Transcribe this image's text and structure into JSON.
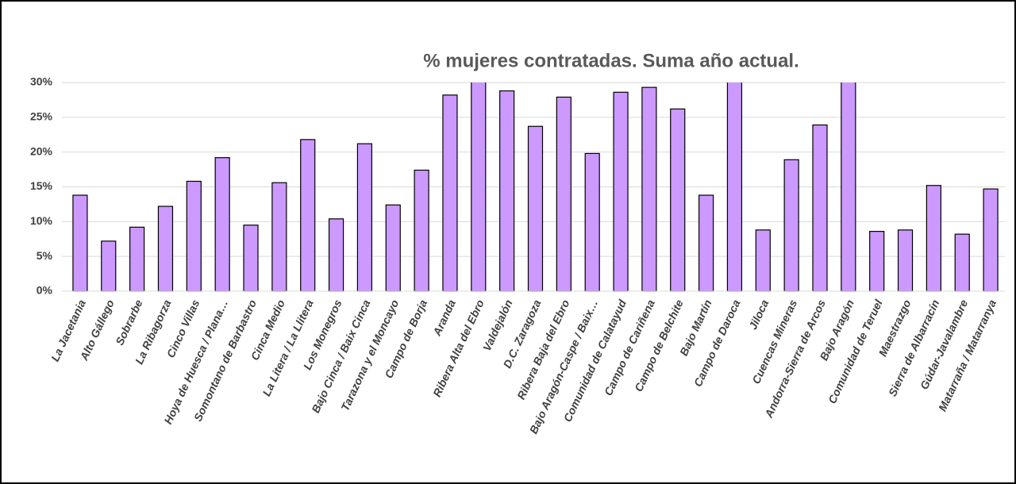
{
  "chart_data": {
    "type": "bar",
    "title": "% mujeres contratadas. Suma año actual.",
    "categories": [
      "La Jacetania",
      "Alto Gállego",
      "Sobrarbe",
      "La Ribagorza",
      "Cinco Villas",
      "Hoya de Huesca / Plana…",
      "Somontano de Barbastro",
      "Cinca Medio",
      "La Litera / La Llitera",
      "Los Monegros",
      "Bajo Cinca / Baix Cinca",
      "Tarazona y el Moncayo",
      "Campo de Borja",
      "Aranda",
      "Ribera Alta del Ebro",
      "Valdejalón",
      "D.C. Zaragoza",
      "Ribera Baja del Ebro",
      "Bajo Aragón-Caspe / Baix…",
      "Comunidad de Calatayud",
      "Campo de Cariñena",
      "Campo de Belchite",
      "Bajo Martín",
      "Campo de Daroca",
      "Jiloca",
      "Cuencas Mineras",
      "Andorra-Sierra de Arcos",
      "Bajo Aragón",
      "Comunidad de Teruel",
      "Maestrazgo",
      "Sierra de Albarracín",
      "Gúdar-Javalambre",
      "Matarraña / Matarranya"
    ],
    "values": [
      13.8,
      7.2,
      9.2,
      12.2,
      15.8,
      19.2,
      9.5,
      15.6,
      21.8,
      10.4,
      21.2,
      12.4,
      17.4,
      28.2,
      32,
      28.8,
      23.7,
      27.9,
      19.8,
      28.6,
      29.3,
      26.2,
      13.8,
      32,
      8.8,
      18.9,
      23.9,
      32,
      8.6,
      8.8,
      15.2,
      8.2,
      14.7
    ],
    "color": "#cc99ff",
    "ylim": [
      0,
      30
    ],
    "yticks": [
      {
        "value": 0,
        "label": "0%"
      },
      {
        "value": 5,
        "label": "5%"
      },
      {
        "value": 10,
        "label": "10%"
      },
      {
        "value": 15,
        "label": "15%"
      },
      {
        "value": 20,
        "label": "20%"
      },
      {
        "value": 25,
        "label": "25%"
      },
      {
        "value": 30,
        "label": "30%"
      }
    ],
    "grid": true
  }
}
